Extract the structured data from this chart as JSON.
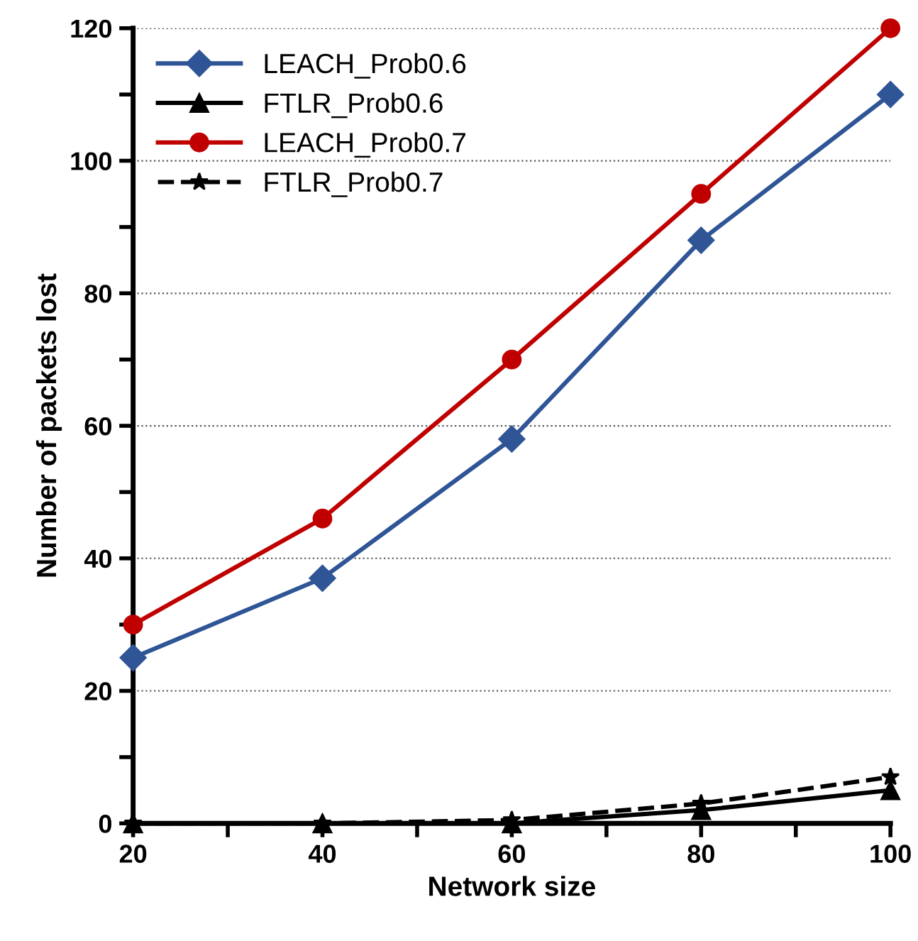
{
  "chart_data": {
    "type": "line",
    "xlabel": "Network size",
    "ylabel": "Number of packets lost",
    "x": [
      20,
      40,
      60,
      80,
      100
    ],
    "xlim": [
      20,
      100
    ],
    "xticks": [
      20,
      {
        "value": 30,
        "label": null
      },
      40,
      {
        "value": 50,
        "label": null
      },
      60,
      {
        "value": 70,
        "label": null
      },
      80,
      {
        "value": 90,
        "label": null
      },
      100
    ],
    "ylim": [
      0,
      120
    ],
    "yticks": [
      0,
      {
        "value": 10,
        "label": null
      },
      20,
      {
        "value": 30,
        "label": null
      },
      40,
      {
        "value": 50,
        "label": null
      },
      60,
      {
        "value": 70,
        "label": null
      },
      80,
      {
        "value": 90,
        "label": null
      },
      100,
      {
        "value": 110,
        "label": null
      },
      120
    ],
    "grid": "y",
    "legend": "top left",
    "series": [
      {
        "name": "LEACH_Prob0.6",
        "color": "#2f5597",
        "marker": "diamond",
        "line_style": "solid",
        "values": [
          25,
          37,
          58,
          88,
          110
        ]
      },
      {
        "name": "FTLR_Prob0.6",
        "color": "#000000",
        "marker": "triangle",
        "line_style": "solid",
        "values": [
          0,
          0,
          0,
          2,
          5
        ]
      },
      {
        "name": "LEACH_Prob0.7",
        "color": "#c00000",
        "marker": "circle",
        "line_style": "solid",
        "values": [
          30,
          46,
          70,
          95,
          120
        ]
      },
      {
        "name": "FTLR_Prob0.7",
        "color": "#000000",
        "marker": "star",
        "line_style": "dashed",
        "values": [
          0,
          0,
          0.5,
          3,
          7
        ]
      }
    ]
  }
}
